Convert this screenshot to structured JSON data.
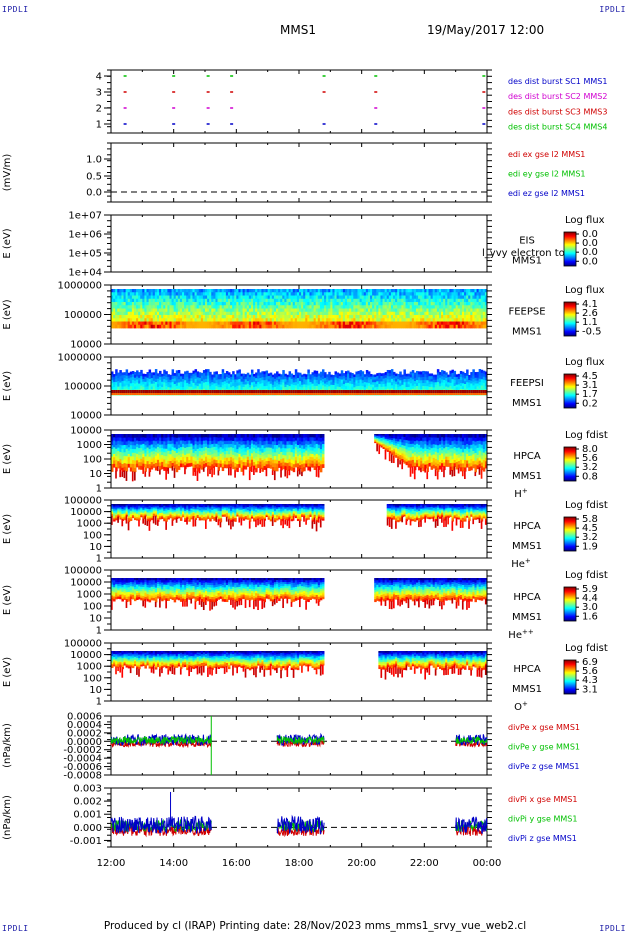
{
  "header": {
    "corner_tl": "IPDLI",
    "corner_tr": "IPDLI",
    "corner_bl": "IPDLI",
    "corner_br": "IPDLI",
    "spacecraft": "MMS1",
    "datetime": "19/May/2017 12:00"
  },
  "footer": {
    "text": "Produced by cl (IRAP)   Printing date: 28/Nov/2023   mms_mms1_srvy_vue_web2.cl"
  },
  "colors": {
    "blue": "#0000c8",
    "magenta": "#d000d0",
    "red": "#d00000",
    "green": "#00c000"
  },
  "chart_data": [
    {
      "type": "scatter",
      "panel": "burst",
      "ylim": [
        0.5,
        4.5
      ],
      "yticks": [
        "4",
        "3",
        "2",
        "1"
      ],
      "legend": [
        {
          "label": "des dist burst SC1 MMS1",
          "color": "#0000c8"
        },
        {
          "label": "des dist burst SC2 MMS2",
          "color": "#d000d0"
        },
        {
          "label": "des dist burst SC3 MMS3",
          "color": "#d00000"
        },
        {
          "label": "des dist burst SC4 MMS4",
          "color": "#00c000"
        }
      ],
      "burst_times_hours": [
        12.45,
        14.0,
        15.1,
        15.85,
        18.8,
        20.45,
        23.9
      ]
    },
    {
      "type": "line",
      "panel": "edi",
      "ylabel": "(mV/m)",
      "ylim": [
        -0.1,
        1.5
      ],
      "yticks": [
        "1.0",
        "0.5",
        "0.0"
      ],
      "legend": [
        {
          "label": "edi ex gse l2 MMS1",
          "color": "#d00000"
        },
        {
          "label": "edi ey gse l2 MMS1",
          "color": "#00c000"
        },
        {
          "label": "edi ez gse l2 MMS1",
          "color": "#0000c8"
        }
      ]
    },
    {
      "type": "heatmap",
      "panel": "eis",
      "ylabel": "E (eV)",
      "yticks": [
        "1e+07",
        "1e+06",
        "1e+05",
        "1e+04"
      ],
      "label_top": "EIS",
      "label_bottom": "MMS1",
      "overlay_text": "l_yvy electron to",
      "cbar_title": "Log flux",
      "cbar_ticks": [
        "0.0",
        "0.0",
        "0.0",
        "0.0"
      ]
    },
    {
      "type": "heatmap",
      "panel": "feepse",
      "ylabel": "E (eV)",
      "yticks": [
        "1000000",
        "100000",
        "10000"
      ],
      "label_top": "FEEPSE",
      "label_bottom": "MMS1",
      "cbar_title": "Log flux",
      "cbar_ticks": [
        "4.1",
        "2.6",
        "1.1",
        "-0.5"
      ]
    },
    {
      "type": "heatmap",
      "panel": "feepsi",
      "ylabel": "E (eV)",
      "yticks": [
        "1000000",
        "100000",
        "10000"
      ],
      "label_top": "FEEPSI",
      "label_bottom": "MMS1",
      "cbar_title": "Log flux",
      "cbar_ticks": [
        "4.5",
        "3.1",
        "1.7",
        "0.2"
      ]
    },
    {
      "type": "heatmap",
      "panel": "hpca_h",
      "ylabel": "E (eV)",
      "yticks": [
        "10000",
        "1000",
        "100",
        "10",
        "1"
      ],
      "label_top": "HPCA",
      "label_bottom": "MMS1",
      "species": "H",
      "species_sup": "+",
      "cbar_title": "Log fdist",
      "cbar_ticks": [
        "8.0",
        "5.6",
        "3.2",
        "0.8"
      ],
      "gaps_hours": [
        [
          18.8,
          20.4
        ]
      ]
    },
    {
      "type": "heatmap",
      "panel": "hpca_he",
      "ylabel": "E (eV)",
      "yticks": [
        "100000",
        "10000",
        "1000",
        "100",
        "10",
        "1"
      ],
      "label_top": "HPCA",
      "label_bottom": "MMS1",
      "species": "He",
      "species_sup": "+",
      "cbar_title": "Log fdist",
      "cbar_ticks": [
        "5.8",
        "4.5",
        "3.2",
        "1.9"
      ],
      "gaps_hours": [
        [
          18.8,
          20.8
        ]
      ]
    },
    {
      "type": "heatmap",
      "panel": "hpca_hepp",
      "ylabel": "E (eV)",
      "yticks": [
        "100000",
        "10000",
        "1000",
        "100",
        "10",
        "1"
      ],
      "label_top": "HPCA",
      "label_bottom": "MMS1",
      "species": "He",
      "species_sup": "++",
      "cbar_title": "Log fdist",
      "cbar_ticks": [
        "5.9",
        "4.4",
        "3.0",
        "1.6"
      ],
      "gaps_hours": [
        [
          18.8,
          20.4
        ]
      ]
    },
    {
      "type": "heatmap",
      "panel": "hpca_o",
      "ylabel": "E (eV)",
      "yticks": [
        "100000",
        "10000",
        "1000",
        "100",
        "10",
        "1"
      ],
      "label_top": "HPCA",
      "label_bottom": "MMS1",
      "species": "O",
      "species_sup": "+",
      "cbar_title": "Log fdist",
      "cbar_ticks": [
        "6.9",
        "5.6",
        "4.3",
        "3.1"
      ],
      "gaps_hours": [
        [
          18.8,
          20.5
        ]
      ]
    },
    {
      "type": "line",
      "panel": "divpe",
      "ylabel": "(nPa/km)",
      "ylim": [
        -0.0008,
        0.0006
      ],
      "yticks": [
        "0.0006",
        "0.0004",
        "0.0002",
        "0.0000",
        "-0.0002",
        "-0.0004",
        "-0.0006",
        "-0.0008"
      ],
      "legend": [
        {
          "label": "divPe x gse MMS1",
          "color": "#d00000"
        },
        {
          "label": "divPe y gse MMS1",
          "color": "#00c000"
        },
        {
          "label": "divPe z gse MMS1",
          "color": "#0000c8"
        }
      ],
      "segments_hours": [
        [
          12.0,
          15.2
        ],
        [
          17.3,
          18.8
        ],
        [
          23.0,
          24.0
        ]
      ]
    },
    {
      "type": "line",
      "panel": "divpi",
      "ylabel": "(nPa/km)",
      "ylim": [
        -0.0015,
        0.003
      ],
      "yticks": [
        "0.003",
        "0.002",
        "0.001",
        "0.000",
        "-0.001"
      ],
      "legend": [
        {
          "label": "divPi x gse MMS1",
          "color": "#d00000"
        },
        {
          "label": "divPi y gse MMS1",
          "color": "#00c000"
        },
        {
          "label": "divPi z gse MMS1",
          "color": "#0000c8"
        }
      ],
      "segments_hours": [
        [
          12.0,
          15.2
        ],
        [
          17.3,
          18.8
        ],
        [
          23.0,
          24.0
        ]
      ]
    }
  ],
  "time_axis": {
    "start_hour": 12,
    "end_hour": 24,
    "tick_labels": [
      "12:00",
      "14:00",
      "16:00",
      "18:00",
      "20:00",
      "22:00",
      "00:00"
    ]
  }
}
